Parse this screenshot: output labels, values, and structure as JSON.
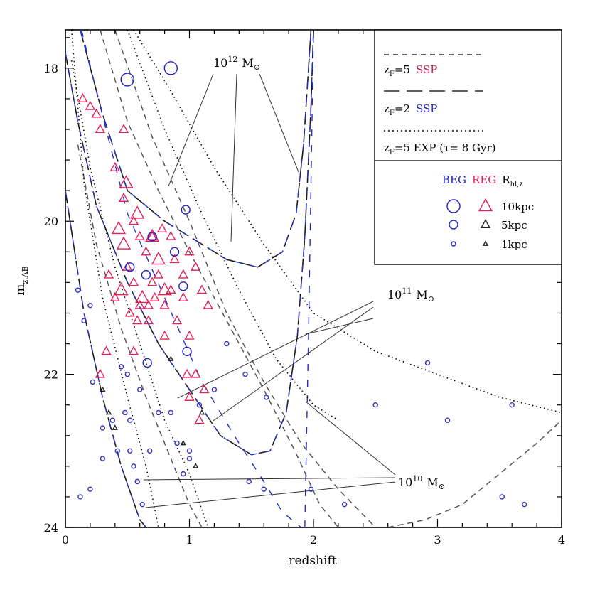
{
  "chart_data": {
    "type": "scatter",
    "xlabel": "redshift",
    "ylabel_main": "m",
    "ylabel_sub": "z,AB",
    "xlim": [
      0,
      4
    ],
    "ylim": [
      24,
      17.5
    ],
    "xticks": [
      "0",
      "1",
      "2",
      "3",
      "4"
    ],
    "yticks": [
      "18",
      "20",
      "22",
      "24"
    ],
    "annotations": [
      {
        "id": "m12",
        "base": "10",
        "exp": "12",
        "unit": "M",
        "sub": "⊙"
      },
      {
        "id": "m11",
        "base": "10",
        "exp": "11",
        "unit": "M",
        "sub": "⊙"
      },
      {
        "id": "m10",
        "base": "10",
        "exp": "10",
        "unit": "M",
        "sub": "⊙"
      }
    ],
    "legend_models": [
      {
        "z": "z",
        "zsub": "F",
        "eq": "=5",
        "model": "SSP",
        "dash": "short",
        "color": "#000000"
      },
      {
        "z": "z",
        "zsub": "F",
        "eq": "=2",
        "model": "SSP",
        "dash": "long",
        "color": "#000000"
      },
      {
        "z": "z",
        "zsub": "F",
        "eq": "=5 EXP (τ= 8 Gyr)",
        "model": "",
        "dash": "dotted",
        "color": "#000000"
      }
    ],
    "legend_sizes": {
      "beg": "BEG",
      "reg": "REG",
      "r": "R",
      "rsub": "hl,z",
      "rows": [
        {
          "label": "10kpc",
          "size": 10
        },
        {
          "label": "5kpc",
          "size": 5
        },
        {
          "label": "1kpc",
          "size": 1
        }
      ]
    },
    "colors": {
      "beg": "#2020c8",
      "reg": "#e0205a",
      "line": "#000000"
    },
    "series": [
      {
        "name": "REG 10kpc",
        "marker": "triangle",
        "points": [
          [
            0.47,
            20.3
          ],
          [
            0.58,
            19.9
          ],
          [
            0.7,
            20.2
          ],
          [
            0.75,
            20.5
          ],
          [
            0.8,
            20.9
          ],
          [
            0.62,
            21.0
          ],
          [
            0.43,
            20.1
          ],
          [
            0.49,
            19.5
          ],
          [
            0.45,
            20.9
          ]
        ]
      },
      {
        "name": "REG 5kpc",
        "marker": "triangle",
        "points": [
          [
            0.14,
            18.4
          ],
          [
            0.2,
            18.5
          ],
          [
            0.25,
            18.6
          ],
          [
            0.28,
            18.8
          ],
          [
            0.47,
            18.8
          ],
          [
            0.4,
            19.3
          ],
          [
            0.47,
            19.7
          ],
          [
            0.55,
            20.0
          ],
          [
            0.6,
            20.2
          ],
          [
            0.65,
            20.4
          ],
          [
            0.7,
            20.2
          ],
          [
            0.78,
            20.1
          ],
          [
            0.85,
            20.2
          ],
          [
            0.88,
            20.5
          ],
          [
            0.95,
            20.7
          ],
          [
            1.0,
            20.4
          ],
          [
            1.05,
            20.6
          ],
          [
            1.1,
            20.9
          ],
          [
            1.15,
            21.1
          ],
          [
            0.5,
            20.6
          ],
          [
            0.55,
            20.8
          ],
          [
            0.6,
            21.1
          ],
          [
            0.7,
            20.8
          ],
          [
            0.75,
            20.7
          ],
          [
            0.8,
            21.1
          ],
          [
            0.85,
            20.9
          ],
          [
            0.95,
            21.0
          ],
          [
            0.52,
            21.2
          ],
          [
            0.58,
            21.3
          ],
          [
            0.67,
            21.1
          ],
          [
            0.72,
            21.0
          ],
          [
            0.9,
            21.3
          ],
          [
            1.0,
            21.5
          ],
          [
            0.8,
            21.5
          ],
          [
            0.67,
            21.3
          ],
          [
            0.55,
            21.7
          ],
          [
            0.33,
            21.7
          ],
          [
            0.28,
            22.0
          ],
          [
            1.05,
            22.0
          ],
          [
            0.98,
            22.0
          ],
          [
            1.12,
            22.2
          ],
          [
            1.0,
            22.3
          ],
          [
            1.08,
            22.6
          ],
          [
            0.4,
            21.0
          ],
          [
            0.35,
            20.7
          ]
        ]
      },
      {
        "name": "REG 1kpc",
        "marker": "triangle",
        "points": [
          [
            0.95,
            22.9
          ],
          [
            1.05,
            23.2
          ],
          [
            0.35,
            22.5
          ],
          [
            0.4,
            22.7
          ],
          [
            0.3,
            22.2
          ],
          [
            1.1,
            22.5
          ],
          [
            0.85,
            21.8
          ]
        ]
      },
      {
        "name": "BEG 10kpc",
        "marker": "circle",
        "points": [
          [
            0.5,
            18.15
          ],
          [
            0.85,
            18.0
          ]
        ]
      },
      {
        "name": "BEG 5kpc",
        "marker": "circle",
        "points": [
          [
            0.97,
            19.85
          ],
          [
            0.95,
            20.85
          ],
          [
            0.98,
            21.7
          ],
          [
            0.52,
            20.6
          ],
          [
            0.7,
            20.2
          ],
          [
            0.88,
            20.4
          ],
          [
            0.66,
            21.85
          ],
          [
            0.65,
            20.7
          ]
        ]
      },
      {
        "name": "BEG 1kpc",
        "marker": "circle",
        "points": [
          [
            0.1,
            20.9
          ],
          [
            0.15,
            21.3
          ],
          [
            0.2,
            21.1
          ],
          [
            0.3,
            22.7
          ],
          [
            0.38,
            22.6
          ],
          [
            0.42,
            23.0
          ],
          [
            0.48,
            22.5
          ],
          [
            0.52,
            22.6
          ],
          [
            0.55,
            23.2
          ],
          [
            0.45,
            21.9
          ],
          [
            0.5,
            22.0
          ],
          [
            0.6,
            22.2
          ],
          [
            0.75,
            22.5
          ],
          [
            0.85,
            22.5
          ],
          [
            0.9,
            22.9
          ],
          [
            1.0,
            23.0
          ],
          [
            1.08,
            22.4
          ],
          [
            1.2,
            22.2
          ],
          [
            1.45,
            22.0
          ],
          [
            1.3,
            21.6
          ],
          [
            1.6,
            23.5
          ],
          [
            1.98,
            23.5
          ],
          [
            2.25,
            23.7
          ],
          [
            3.08,
            22.6
          ],
          [
            3.7,
            23.7
          ],
          [
            1.62,
            22.3
          ],
          [
            2.5,
            22.4
          ],
          [
            2.92,
            21.85
          ],
          [
            3.6,
            22.4
          ],
          [
            3.52,
            23.6
          ],
          [
            0.12,
            23.6
          ],
          [
            0.2,
            23.5
          ],
          [
            0.58,
            23.4
          ],
          [
            0.62,
            23.7
          ],
          [
            0.68,
            23.0
          ],
          [
            0.95,
            23.3
          ],
          [
            1.0,
            23.1
          ],
          [
            0.22,
            22.1
          ],
          [
            0.52,
            23.0
          ],
          [
            1.48,
            23.4
          ],
          [
            0.3,
            23.1
          ]
        ]
      }
    ]
  }
}
